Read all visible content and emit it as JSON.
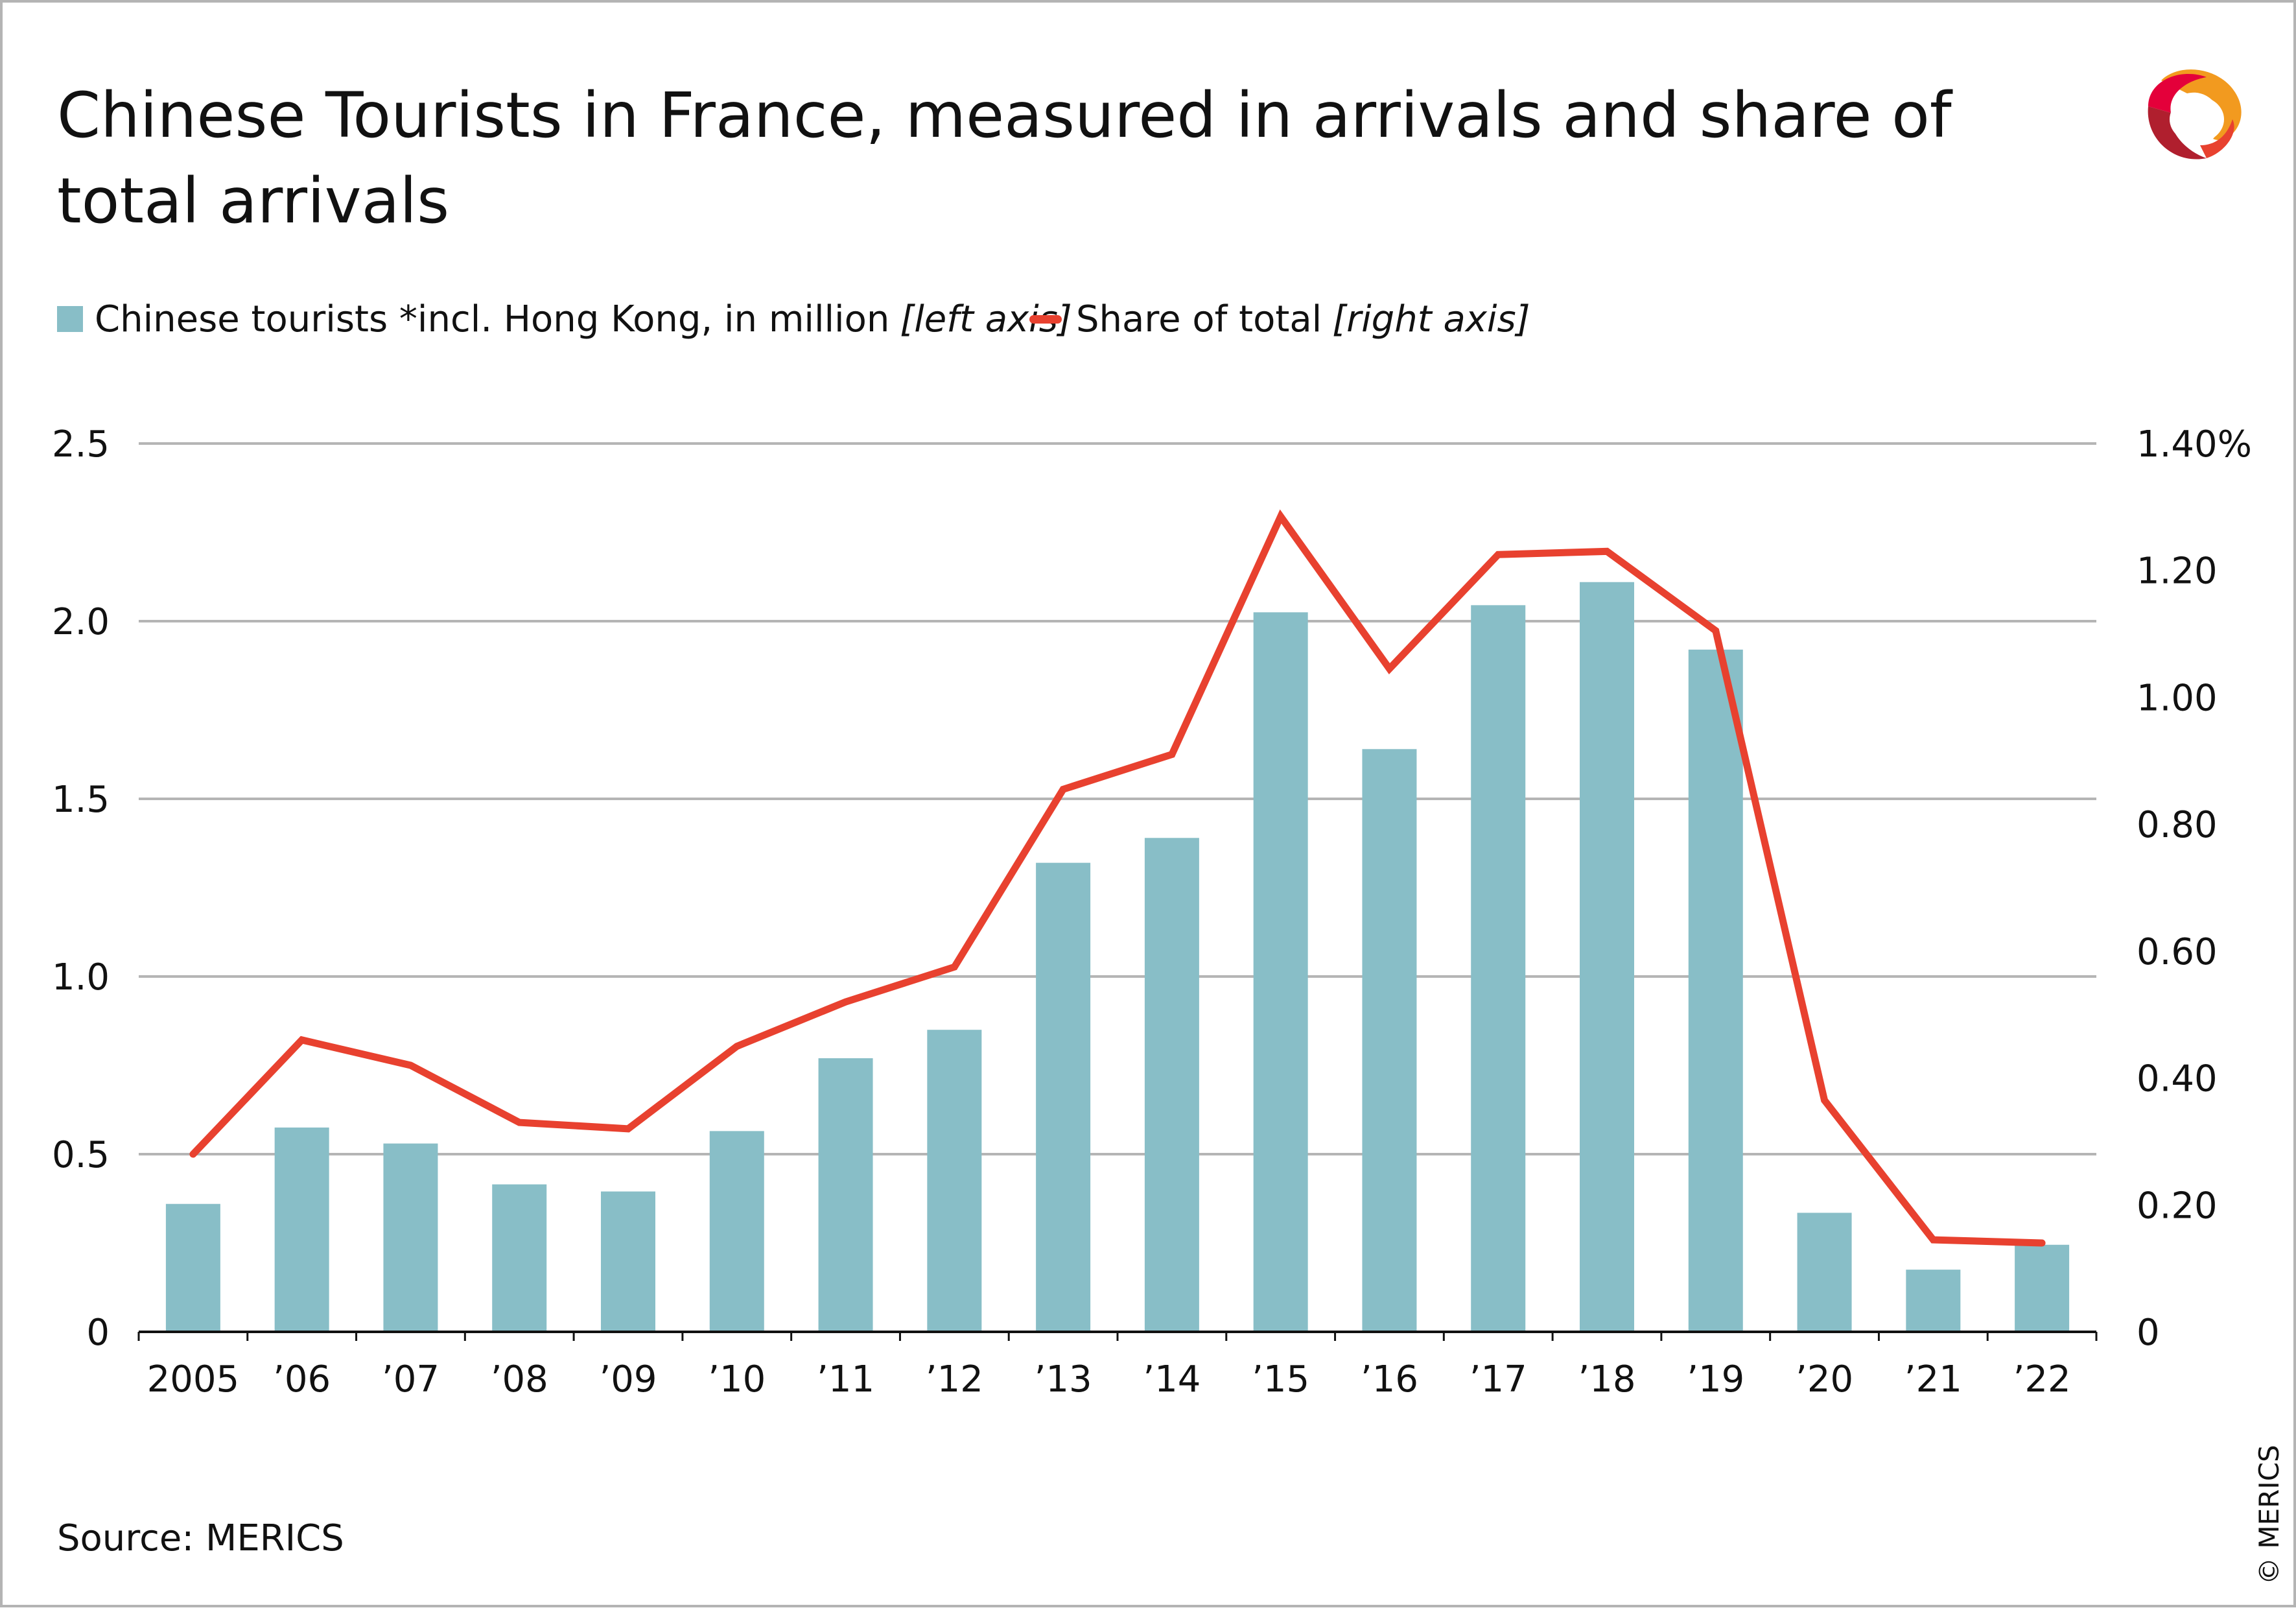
{
  "title": "Chinese Tourists in France, measured in arrivals and share of total arrivals",
  "source": "Source: MERICS",
  "copyright": "© MERICS",
  "colors": {
    "bar": "#88bec7",
    "line": "#e8412f",
    "grid": "#b5b5b5",
    "axis": "#111111"
  },
  "legend": {
    "bar_label": "Chinese tourists *incl. Hong Kong, in million",
    "bar_note": "[left axis]",
    "line_label": "Share of total",
    "line_note": "[right axis]"
  },
  "chart_data": {
    "type": "bar",
    "categories": [
      "2005",
      "’06",
      "’07",
      "’08",
      "’09",
      "’10",
      "’11",
      "’12",
      "’13",
      "’14",
      "’15",
      "’16",
      "’17",
      "’18",
      "’19",
      "’20",
      "’21",
      "’22"
    ],
    "series": [
      {
        "name": "Chinese tourists *incl. Hong Kong, in million",
        "type": "bar",
        "axis": "left",
        "values": [
          0.36,
          0.575,
          0.53,
          0.415,
          0.395,
          0.565,
          0.77,
          0.85,
          1.32,
          1.39,
          2.025,
          1.64,
          2.045,
          2.11,
          1.92,
          0.335,
          0.175,
          0.245
        ]
      },
      {
        "name": "Share of total",
        "type": "line",
        "axis": "right",
        "values": [
          0.28,
          0.46,
          0.42,
          0.33,
          0.32,
          0.45,
          0.52,
          0.575,
          0.855,
          0.91,
          1.285,
          1.045,
          1.225,
          1.23,
          1.105,
          0.365,
          0.145,
          0.14
        ]
      }
    ],
    "y_left": {
      "ylim": [
        0,
        2.5
      ],
      "ticks": [
        "0",
        "0.5",
        "1.0",
        "1.5",
        "2.0",
        "2.5"
      ],
      "tick_values": [
        0,
        0.5,
        1.0,
        1.5,
        2.0,
        2.5
      ]
    },
    "y_right": {
      "ylim": [
        0,
        1.4
      ],
      "ticks": [
        "0",
        "0.20",
        "0.40",
        "0.60",
        "0.80",
        "1.00",
        "1.20",
        "1.40%"
      ],
      "tick_values": [
        0,
        0.2,
        0.4,
        0.6,
        0.8,
        1.0,
        1.2,
        1.4
      ]
    },
    "grid": true,
    "legend_position": "top-left"
  }
}
